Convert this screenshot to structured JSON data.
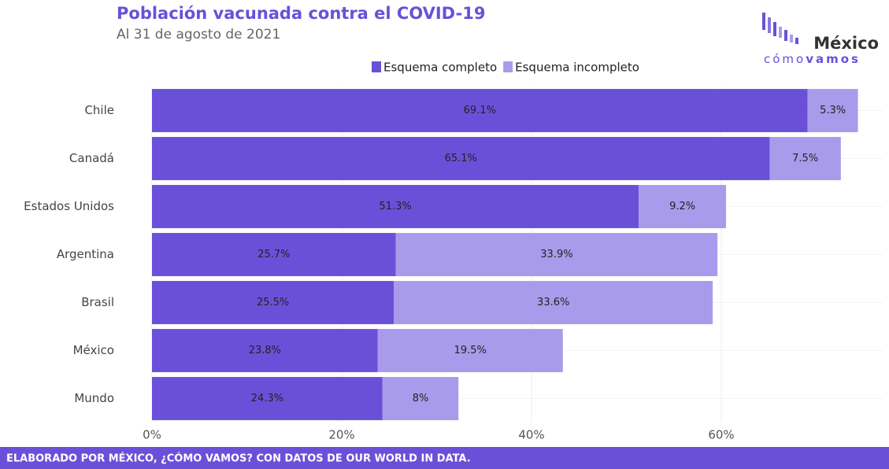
{
  "chart_data": {
    "type": "stacked-barh",
    "title": "Población vacunada contra el COVID-19",
    "subtitle": "Al 31 de agosto de 2021",
    "categories": [
      "Chile",
      "Canadá",
      "Estados Unidos",
      "Argentina",
      "Brasil",
      "México",
      "Mundo"
    ],
    "series": [
      {
        "name": "Esquema completo",
        "color": "#6a50d9",
        "values": [
          69.1,
          65.1,
          51.3,
          25.7,
          25.5,
          23.8,
          24.3
        ],
        "value_labels": [
          "69.1%",
          "65.1%",
          "51.3%",
          "25.7%",
          "25.5%",
          "23.8%",
          "24.3%"
        ]
      },
      {
        "name": "Esquema incompleto",
        "color": "#a99beb",
        "values": [
          5.3,
          7.5,
          9.2,
          33.9,
          33.6,
          19.5,
          8
        ],
        "value_labels": [
          "5.3%",
          "7.5%",
          "9.2%",
          "33.9%",
          "33.6%",
          "19.5%",
          "8%"
        ]
      }
    ],
    "xlim": [
      0,
      77
    ],
    "xticks": [
      {
        "value": 0,
        "label": "0%"
      },
      {
        "value": 20,
        "label": "20%"
      },
      {
        "value": 40,
        "label": "40%"
      },
      {
        "value": 60,
        "label": "60%"
      }
    ],
    "grid": true,
    "legend": "top",
    "footer": "ELABORADO POR MÉXICO, ¿CÓMO VAMOS? CON DATOS DE OUR WORLD IN DATA.",
    "logo": {
      "name": "México",
      "tagline": [
        "cómo",
        "vamos"
      ]
    }
  }
}
